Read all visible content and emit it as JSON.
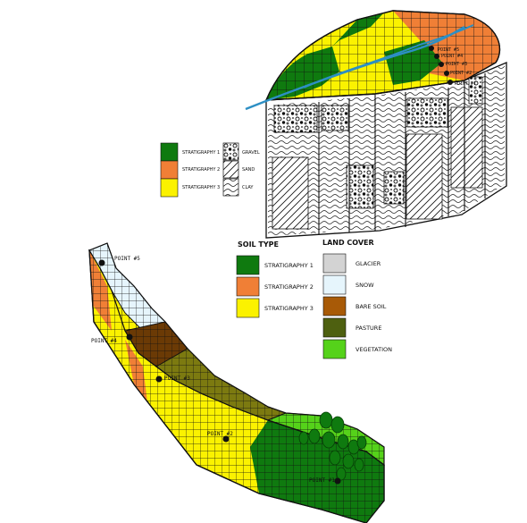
{
  "colors": {
    "strat1": "#0f7a0f",
    "strat2": "#f07f36",
    "strat3": "#fbf200",
    "glacier": "#d3d3d3",
    "snow": "#e6f5fc",
    "bare_soil": "#a85a07",
    "pasture": "#4e6010",
    "vegetation": "#55d21a",
    "river": "#2d8fc4"
  },
  "block_legend": {
    "entries": [
      {
        "label": "STRATIGRAPHY 1",
        "key": "strat1"
      },
      {
        "label": "STRATIGRAPHY 2",
        "key": "strat2"
      },
      {
        "label": "STRATIGRAPHY 3",
        "key": "strat3"
      }
    ],
    "patterns": [
      {
        "label": "GRAVEL"
      },
      {
        "label": "SAND"
      },
      {
        "label": "CLAY"
      }
    ]
  },
  "block_points": [
    "POINT #1",
    "POINT #2",
    "POINT #3",
    "POINT #4",
    "POINT #5"
  ],
  "soil_type": {
    "title": "SOIL TYPE",
    "entries": [
      {
        "label": "STRATIGRAPHY 1",
        "key": "strat1"
      },
      {
        "label": "STRATIGRAPHY 2",
        "key": "strat2"
      },
      {
        "label": "STRATIGRAPHY 3",
        "key": "strat3"
      }
    ]
  },
  "land_cover": {
    "title": "LAND COVER",
    "entries": [
      {
        "label": "GLACIER",
        "key": "glacier"
      },
      {
        "label": "SNOW",
        "key": "snow"
      },
      {
        "label": "BARE SOIL",
        "key": "bare_soil"
      },
      {
        "label": "PASTURE",
        "key": "pasture"
      },
      {
        "label": "VEGETATION",
        "key": "vegetation"
      }
    ]
  },
  "profile_points": [
    {
      "label": "POINT #5"
    },
    {
      "label": "POINT #4"
    },
    {
      "label": "POINT #3"
    },
    {
      "label": "POINT #2"
    },
    {
      "label": "POINT #1"
    }
  ]
}
